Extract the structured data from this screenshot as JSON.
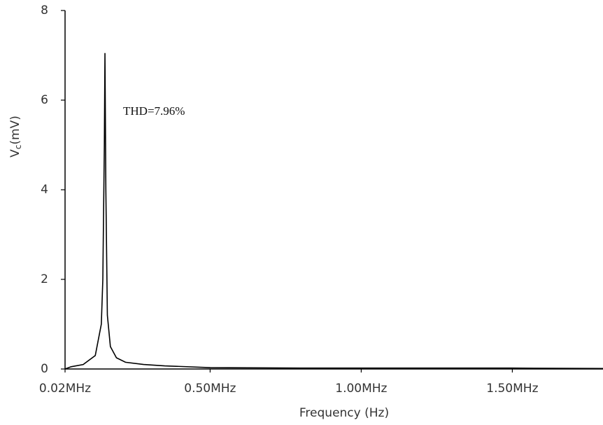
{
  "chart_data": {
    "type": "line",
    "xlabel": "Frequency (Hz)",
    "ylabel": "V",
    "ylabel_sub": "c",
    "ylabel_unit": "(mV)",
    "annotation": "THD=7.96%",
    "x": [
      0.02,
      0.04,
      0.08,
      0.12,
      0.14,
      0.145,
      0.15,
      0.152,
      0.155,
      0.16,
      0.17,
      0.19,
      0.22,
      0.28,
      0.35,
      0.5,
      0.8,
      1.5,
      1.8
    ],
    "series": [
      {
        "color": "#000000",
        "values": [
          0,
          0.05,
          0.1,
          0.3,
          1.0,
          2.0,
          5.0,
          7.05,
          4.0,
          1.2,
          0.5,
          0.25,
          0.15,
          0.1,
          0.07,
          0.03,
          0.02,
          0.02,
          0.01
        ]
      }
    ],
    "xlim": [
      0.02,
      1.8
    ],
    "ylim": [
      0,
      8
    ],
    "xticks": [
      {
        "value": 0.02,
        "label": "0.02MHz"
      },
      {
        "value": 0.5,
        "label": "0.50MHz"
      },
      {
        "value": 1.0,
        "label": "1.00MHz"
      },
      {
        "value": 1.5,
        "label": "1.50MHz"
      }
    ],
    "yticks": [
      0,
      2,
      4,
      6,
      8
    ],
    "grid": false
  }
}
